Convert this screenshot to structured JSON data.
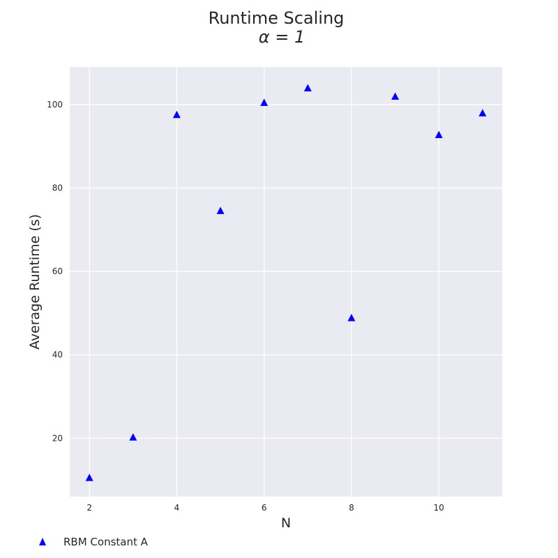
{
  "chart_data": {
    "type": "scatter",
    "title": "Runtime Scaling",
    "subtitle": "α = 1",
    "xlabel": "N",
    "ylabel": "Average Runtime (s)",
    "xlim": [
      1.55,
      11.45
    ],
    "ylim": [
      6,
      109
    ],
    "x_ticks": [
      2,
      4,
      6,
      8,
      10
    ],
    "y_ticks": [
      20,
      40,
      60,
      80,
      100
    ],
    "grid": true,
    "legend_position": "bottom-left",
    "series": [
      {
        "name": "RBM Constant A",
        "marker": "triangle",
        "color": "#0000ff",
        "x": [
          2,
          3,
          4,
          5,
          6,
          7,
          8,
          9,
          10,
          11
        ],
        "y": [
          10.5,
          20.2,
          97.5,
          74.5,
          100.4,
          103.9,
          48.8,
          101.9,
          92.7,
          97.9
        ]
      }
    ]
  },
  "style": {
    "plot_background": "#eaeaf2",
    "grid_color": "#ffffff",
    "text_color": "#262626"
  }
}
